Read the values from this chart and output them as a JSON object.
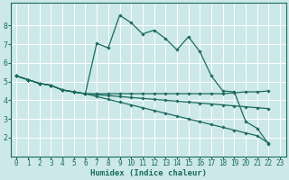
{
  "bg_color": "#cce8e8",
  "grid_color": "#ffffff",
  "line_color": "#1a6b5e",
  "xlabel": "Humidex (Indice chaleur)",
  "xlim": [
    -0.5,
    23.5
  ],
  "ylim": [
    1.0,
    9.2
  ],
  "xticks": [
    0,
    1,
    2,
    3,
    4,
    5,
    6,
    7,
    8,
    9,
    10,
    11,
    12,
    13,
    14,
    15,
    16,
    17,
    18,
    19,
    20,
    21,
    22,
    23
  ],
  "yticks": [
    2,
    3,
    4,
    5,
    6,
    7,
    8
  ],
  "series": [
    {
      "x": [
        0,
        1,
        2,
        3,
        4,
        5,
        6,
        7,
        8,
        9,
        10,
        11,
        12,
        13,
        14,
        15,
        16,
        17,
        18,
        19,
        20,
        21,
        22
      ],
      "y": [
        5.3,
        5.1,
        4.9,
        4.8,
        4.55,
        4.45,
        4.35,
        7.05,
        6.8,
        8.55,
        8.15,
        7.55,
        7.75,
        7.3,
        6.7,
        7.4,
        6.6,
        5.3,
        4.5,
        4.45,
        2.85,
        2.5,
        1.65
      ]
    },
    {
      "x": [
        0,
        1,
        2,
        3,
        4,
        5,
        6,
        7,
        8,
        9,
        10,
        11,
        12,
        13,
        14,
        15,
        16,
        17,
        18,
        19,
        20,
        21,
        22
      ],
      "y": [
        5.3,
        5.1,
        4.9,
        4.8,
        4.55,
        4.45,
        4.35,
        4.35,
        4.35,
        4.35,
        4.35,
        4.35,
        4.35,
        4.35,
        4.35,
        4.35,
        4.35,
        4.35,
        4.35,
        4.4,
        4.45,
        4.45,
        4.5
      ]
    },
    {
      "x": [
        0,
        1,
        2,
        3,
        4,
        5,
        6,
        7,
        8,
        9,
        10,
        11,
        12,
        13,
        14,
        15,
        16,
        17,
        18,
        19,
        20,
        21,
        22
      ],
      "y": [
        5.3,
        5.1,
        4.9,
        4.8,
        4.55,
        4.45,
        4.35,
        4.3,
        4.25,
        4.2,
        4.15,
        4.1,
        4.05,
        4.0,
        3.95,
        3.9,
        3.85,
        3.8,
        3.75,
        3.7,
        3.65,
        3.6,
        3.55
      ]
    },
    {
      "x": [
        0,
        1,
        2,
        3,
        4,
        5,
        6,
        7,
        8,
        9,
        10,
        11,
        12,
        13,
        14,
        15,
        16,
        17,
        18,
        19,
        20,
        21,
        22
      ],
      "y": [
        5.3,
        5.1,
        4.9,
        4.8,
        4.55,
        4.45,
        4.35,
        4.2,
        4.05,
        3.9,
        3.75,
        3.6,
        3.45,
        3.3,
        3.15,
        3.0,
        2.85,
        2.7,
        2.55,
        2.4,
        2.25,
        2.1,
        1.7
      ]
    }
  ],
  "tick_fontsize": 5.5,
  "xlabel_fontsize": 6.5,
  "marker": "D",
  "markersize": 1.8
}
